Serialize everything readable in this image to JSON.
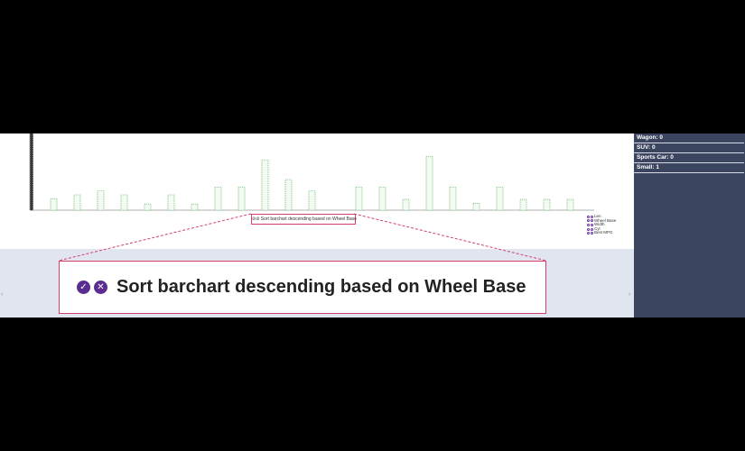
{
  "hint": {
    "small_text": "Sort barchart descending based on Wheel Base",
    "zoom_text": "Sort barchart descending based on Wheel Base",
    "accept_glyph": "✓",
    "reject_glyph": "✕"
  },
  "legend": {
    "items": [
      "Len",
      "Wheel Base",
      "Width",
      "Cyl",
      "Best MPG"
    ]
  },
  "side_panel": {
    "rows": [
      {
        "label": "Wagon:",
        "value": "0"
      },
      {
        "label": "SUV:",
        "value": "0"
      },
      {
        "label": "Sports Car:",
        "value": "0"
      },
      {
        "label": "Small:",
        "value": "1"
      }
    ]
  },
  "nav": {
    "left": "‹",
    "right": "›"
  },
  "colors": {
    "bar_stroke": "#4caf50",
    "accent": "#d3416a",
    "button": "#5c2d91",
    "panel": "#3c4560"
  },
  "chart_data": {
    "type": "bar",
    "values": [
      100,
      15,
      20,
      25,
      20,
      8,
      20,
      8,
      30,
      30,
      65,
      40,
      25,
      0,
      30,
      30,
      14,
      70,
      30,
      9,
      30,
      14,
      14,
      14
    ]
  }
}
